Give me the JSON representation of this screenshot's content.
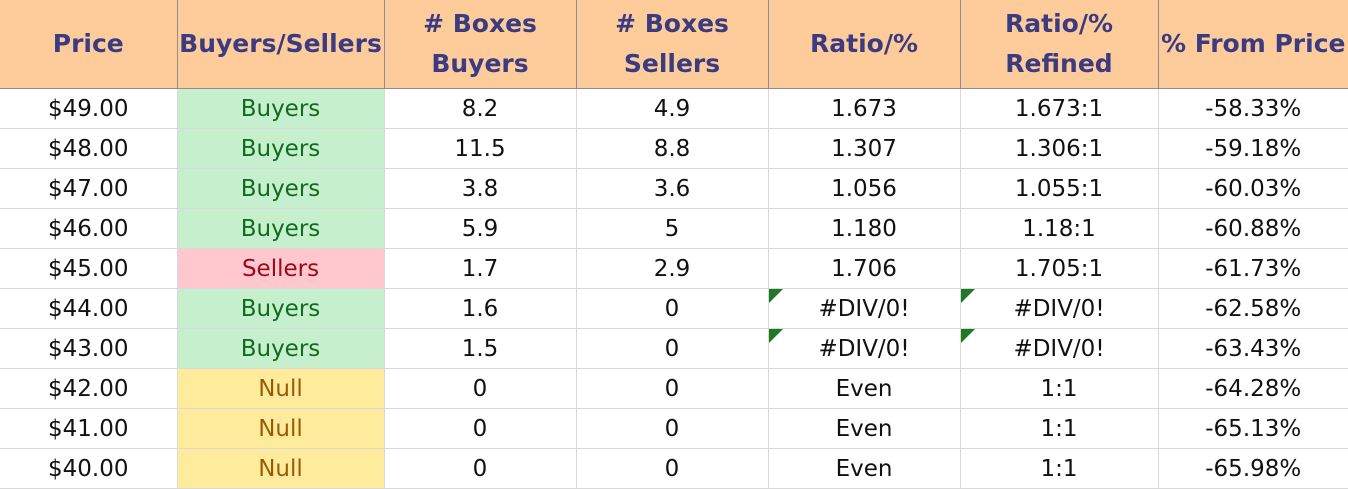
{
  "headers": [
    [
      "Price"
    ],
    [
      "Buyers/Sellers"
    ],
    [
      "# Boxes",
      "Buyers"
    ],
    [
      "# Boxes",
      "Sellers"
    ],
    [
      "Ratio/%"
    ],
    [
      "Ratio/%",
      "Refined"
    ],
    [
      "% From Price"
    ]
  ],
  "colors": {
    "header_bg": "#fdcc9a",
    "header_text": "#3b3b82",
    "buyers_bg": "#c6efce",
    "buyers_text": "#116c1d",
    "sellers_bg": "#ffc7ce",
    "sellers_text": "#a0061a",
    "null_bg": "#ffeb9c",
    "null_text": "#9c5a06",
    "error_flag": "#1f7a27"
  },
  "rows": [
    {
      "price": "$49.00",
      "side": "Buyers",
      "boxes_buyers": "8.2",
      "boxes_sellers": "4.9",
      "ratio": "1.673",
      "ratio_refined": "1.673:1",
      "from_price": "-58.33%"
    },
    {
      "price": "$48.00",
      "side": "Buyers",
      "boxes_buyers": "11.5",
      "boxes_sellers": "8.8",
      "ratio": "1.307",
      "ratio_refined": "1.306:1",
      "from_price": "-59.18%"
    },
    {
      "price": "$47.00",
      "side": "Buyers",
      "boxes_buyers": "3.8",
      "boxes_sellers": "3.6",
      "ratio": "1.056",
      "ratio_refined": "1.055:1",
      "from_price": "-60.03%"
    },
    {
      "price": "$46.00",
      "side": "Buyers",
      "boxes_buyers": "5.9",
      "boxes_sellers": "5",
      "ratio": "1.180",
      "ratio_refined": "1.18:1",
      "from_price": "-60.88%"
    },
    {
      "price": "$45.00",
      "side": "Sellers",
      "boxes_buyers": "1.7",
      "boxes_sellers": "2.9",
      "ratio": "1.706",
      "ratio_refined": "1.705:1",
      "from_price": "-61.73%"
    },
    {
      "price": "$44.00",
      "side": "Buyers",
      "boxes_buyers": "1.6",
      "boxes_sellers": "0",
      "ratio": "#DIV/0!",
      "ratio_refined": "#DIV/0!",
      "from_price": "-62.58%"
    },
    {
      "price": "$43.00",
      "side": "Buyers",
      "boxes_buyers": "1.5",
      "boxes_sellers": "0",
      "ratio": "#DIV/0!",
      "ratio_refined": "#DIV/0!",
      "from_price": "-63.43%"
    },
    {
      "price": "$42.00",
      "side": "Null",
      "boxes_buyers": "0",
      "boxes_sellers": "0",
      "ratio": "Even",
      "ratio_refined": "1:1",
      "from_price": "-64.28%"
    },
    {
      "price": "$41.00",
      "side": "Null",
      "boxes_buyers": "0",
      "boxes_sellers": "0",
      "ratio": "Even",
      "ratio_refined": "1:1",
      "from_price": "-65.13%"
    },
    {
      "price": "$40.00",
      "side": "Null",
      "boxes_buyers": "0",
      "boxes_sellers": "0",
      "ratio": "Even",
      "ratio_refined": "1:1",
      "from_price": "-65.98%"
    }
  ]
}
